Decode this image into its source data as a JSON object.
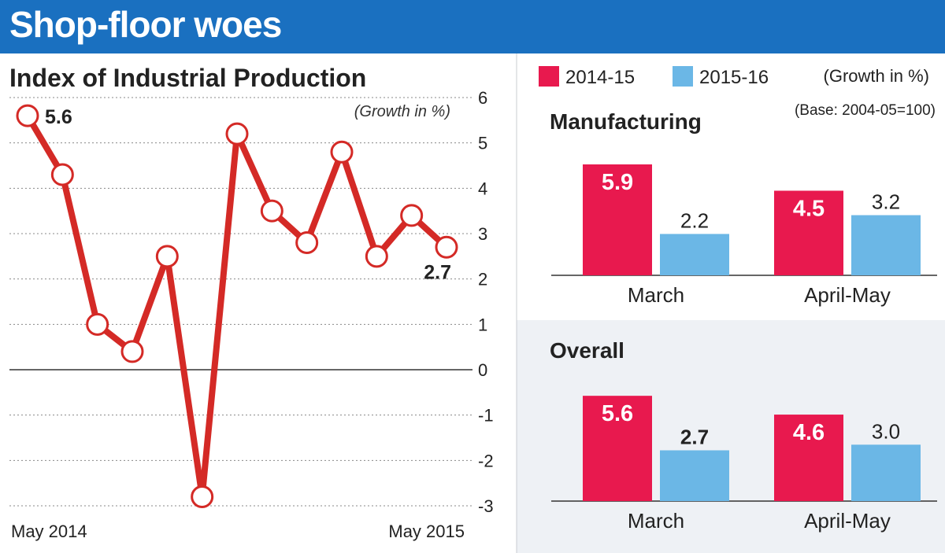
{
  "banner": {
    "title": "Shop-floor woes"
  },
  "colors": {
    "banner": "#1a70c0",
    "line": "#d42a26",
    "series_2014_15": "#e8194e",
    "series_2015_16": "#6bb7e6",
    "panel_bg": "#eef1f5"
  },
  "legend": {
    "items": [
      "2014-15",
      "2015-16"
    ],
    "unit": "(Growth in %)",
    "base": "(Base: 2004-05=100)"
  },
  "chart_data": [
    {
      "type": "line",
      "title": "Index of Industrial Production",
      "unit": "(Growth in %)",
      "x_start_label": "May 2014",
      "x_end_label": "May 2015",
      "values": [
        5.6,
        4.3,
        1.0,
        0.4,
        2.5,
        -2.8,
        5.2,
        3.5,
        2.8,
        4.8,
        2.5,
        3.4,
        2.7
      ],
      "point_labels": [
        {
          "index": 0,
          "text": "5.6"
        },
        {
          "index": 12,
          "text": "2.7"
        }
      ],
      "ylim": [
        -3,
        6
      ],
      "yticks": [
        "6",
        "5",
        "4",
        "3",
        "2",
        "1",
        "0",
        "-1",
        "-2",
        "-3"
      ],
      "color": "#d42a26"
    },
    {
      "type": "bar",
      "title": "Manufacturing",
      "categories": [
        "March",
        "April-May"
      ],
      "series": [
        {
          "name": "2014-15",
          "values": [
            5.9,
            4.5
          ],
          "labels": [
            "5.9",
            "4.5"
          ]
        },
        {
          "name": "2015-16",
          "values": [
            2.2,
            3.2
          ],
          "labels": [
            "2.2",
            "3.2"
          ]
        }
      ]
    },
    {
      "type": "bar",
      "title": "Overall",
      "categories": [
        "March",
        "April-May"
      ],
      "series": [
        {
          "name": "2014-15",
          "values": [
            5.6,
            4.6
          ],
          "labels": [
            "5.6",
            "4.6"
          ]
        },
        {
          "name": "2015-16",
          "values": [
            2.7,
            3.0
          ],
          "labels": [
            "2.7",
            "3.0"
          ]
        }
      ]
    }
  ]
}
